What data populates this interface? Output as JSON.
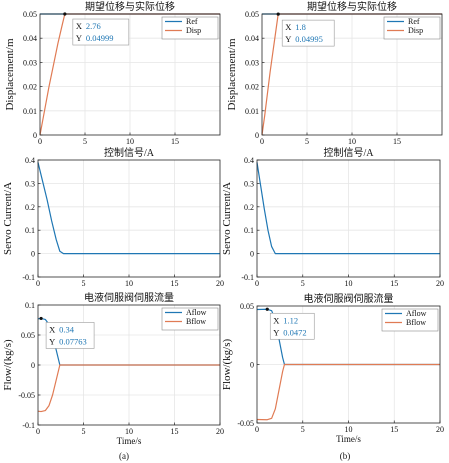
{
  "figure": {
    "label_a": "(a)",
    "label_b": "(b)"
  },
  "colors": {
    "series_blue": "#1f77b4",
    "series_orange": "#e07b54",
    "datatip_value": "#1f77b4",
    "grid": "#e6e6e6",
    "axis": "#262626"
  },
  "chart_data": [
    {
      "id": "disp-a",
      "type": "line",
      "title": "期望位移与实际位移",
      "xlabel": "",
      "ylabel": "Displacement/m",
      "xlim": [
        0,
        20
      ],
      "ylim": [
        0,
        0.05
      ],
      "xticks": [
        "0",
        "5",
        "10",
        "15"
      ],
      "yticks": [
        "0",
        "0.01",
        "0.02",
        "0.03",
        "0.04",
        "0.05"
      ],
      "grid": true,
      "legend": "top-right",
      "series": [
        {
          "name": "Ref",
          "color": "#1f77b4",
          "x": [
            0,
            20
          ],
          "y": [
            0.05,
            0.05
          ]
        },
        {
          "name": "Disp",
          "color": "#e07b54",
          "x": [
            0,
            0.5,
            1.0,
            1.5,
            2.0,
            2.5,
            2.76,
            5,
            10,
            15,
            20
          ],
          "y": [
            0,
            0.01,
            0.02,
            0.029,
            0.038,
            0.046,
            0.05,
            0.05,
            0.05,
            0.05,
            0.05
          ]
        }
      ],
      "datatip": {
        "x": 2.76,
        "y": 0.04999,
        "x_text": "2.76",
        "y_text": "0.04999",
        "x_label": "X",
        "y_label": "Y"
      }
    },
    {
      "id": "disp-b",
      "type": "line",
      "title": "期望位移与实际位移",
      "xlabel": "",
      "ylabel": "Displacement/m",
      "xlim": [
        0,
        20
      ],
      "ylim": [
        0,
        0.05
      ],
      "xticks": [
        "0",
        "5",
        "10",
        "15"
      ],
      "yticks": [
        "0",
        "0.01",
        "0.02",
        "0.03",
        "0.04",
        "0.05"
      ],
      "grid": true,
      "legend": "top-right",
      "series": [
        {
          "name": "Ref",
          "color": "#1f77b4",
          "x": [
            0,
            20
          ],
          "y": [
            0.05,
            0.05
          ]
        },
        {
          "name": "Disp",
          "color": "#e07b54",
          "x": [
            0,
            0.3,
            0.6,
            0.9,
            1.2,
            1.5,
            1.8,
            5,
            10,
            15,
            20
          ],
          "y": [
            0,
            0.008,
            0.017,
            0.026,
            0.034,
            0.042,
            0.05,
            0.05,
            0.05,
            0.05,
            0.05
          ]
        }
      ],
      "datatip": {
        "x": 1.8,
        "y": 0.04995,
        "x_text": "1.8",
        "y_text": "0.04995",
        "x_label": "X",
        "y_label": "Y"
      }
    },
    {
      "id": "current-a",
      "type": "line",
      "title": "控制信号/A",
      "xlabel": "",
      "ylabel": "Servo Current/A",
      "xlim": [
        0,
        20
      ],
      "ylim": [
        -0.1,
        0.4
      ],
      "xticks": [
        "0",
        "5",
        "10",
        "15",
        "20"
      ],
      "yticks": [
        "-0.1",
        "0",
        "0.1",
        "0.2",
        "0.3",
        "0.4"
      ],
      "grid": true,
      "legend": "none",
      "series": [
        {
          "name": "",
          "color": "#1f77b4",
          "x": [
            0,
            0.5,
            1.0,
            1.5,
            2.0,
            2.4,
            2.8,
            20
          ],
          "y": [
            0.39,
            0.31,
            0.23,
            0.14,
            0.06,
            0.01,
            0,
            0
          ]
        }
      ]
    },
    {
      "id": "current-b",
      "type": "line",
      "title": "控制信号/A",
      "xlabel": "",
      "ylabel": "Servo Current/A",
      "xlim": [
        0,
        20
      ],
      "ylim": [
        -0.1,
        0.4
      ],
      "xticks": [
        "0",
        "5",
        "10",
        "15",
        "20"
      ],
      "yticks": [
        "-0.1",
        "0",
        "0.1",
        "0.2",
        "0.3",
        "0.4"
      ],
      "grid": true,
      "legend": "none",
      "series": [
        {
          "name": "",
          "color": "#1f77b4",
          "x": [
            0,
            0.4,
            0.8,
            1.2,
            1.6,
            2.0,
            20
          ],
          "y": [
            0.39,
            0.29,
            0.19,
            0.1,
            0.03,
            0,
            0
          ]
        }
      ]
    },
    {
      "id": "flow-a",
      "type": "line",
      "title": "电液伺服阀伺服流量",
      "xlabel": "Time/s",
      "ylabel": "Flow/(kg/s)",
      "xlim": [
        0,
        20
      ],
      "ylim": [
        -0.1,
        0.1
      ],
      "xticks": [
        "0",
        "5",
        "10",
        "15",
        "20"
      ],
      "yticks": [
        "-0.1",
        "-0.05",
        "0",
        "0.05",
        "0.1"
      ],
      "grid": true,
      "legend": "top-right",
      "series": [
        {
          "name": "Aflow",
          "color": "#1f77b4",
          "x": [
            0,
            0.34,
            0.8,
            1.2,
            1.6,
            2.0,
            2.4,
            20
          ],
          "y": [
            0.077,
            0.0776,
            0.076,
            0.068,
            0.05,
            0.025,
            0,
            0
          ]
        },
        {
          "name": "Bflow",
          "color": "#e07b54",
          "x": [
            0,
            0.34,
            0.8,
            1.2,
            1.6,
            2.0,
            2.4,
            20
          ],
          "y": [
            -0.077,
            -0.0776,
            -0.076,
            -0.068,
            -0.05,
            -0.025,
            0,
            0
          ]
        }
      ],
      "datatip": {
        "x": 0.34,
        "y": 0.07763,
        "x_text": "0.34",
        "y_text": "0.07763",
        "x_label": "X",
        "y_label": "Y"
      }
    },
    {
      "id": "flow-b",
      "type": "line",
      "title": "电液伺服阀伺服流量",
      "xlabel": "Time/s",
      "ylabel": "Flow/(kg/s)",
      "xlim": [
        0,
        20
      ],
      "ylim": [
        -0.05,
        0.05
      ],
      "xticks": [
        "0",
        "5",
        "10",
        "15",
        "20"
      ],
      "yticks": [
        "-0.05",
        "0",
        "0.05"
      ],
      "grid": true,
      "legend": "top-right",
      "series": [
        {
          "name": "Aflow",
          "color": "#1f77b4",
          "x": [
            0,
            1.12,
            1.6,
            2.0,
            2.4,
            2.8,
            3.0,
            20
          ],
          "y": [
            0.047,
            0.0472,
            0.046,
            0.038,
            0.022,
            0.006,
            0,
            0
          ]
        },
        {
          "name": "Bflow",
          "color": "#e07b54",
          "x": [
            0,
            1.12,
            1.6,
            2.0,
            2.4,
            2.8,
            3.0,
            20
          ],
          "y": [
            -0.047,
            -0.0472,
            -0.046,
            -0.038,
            -0.022,
            -0.006,
            0,
            0
          ]
        }
      ],
      "datatip": {
        "x": 1.12,
        "y": 0.0472,
        "x_text": "1.12",
        "y_text": "0.0472",
        "x_label": "X",
        "y_label": "Y"
      }
    }
  ]
}
